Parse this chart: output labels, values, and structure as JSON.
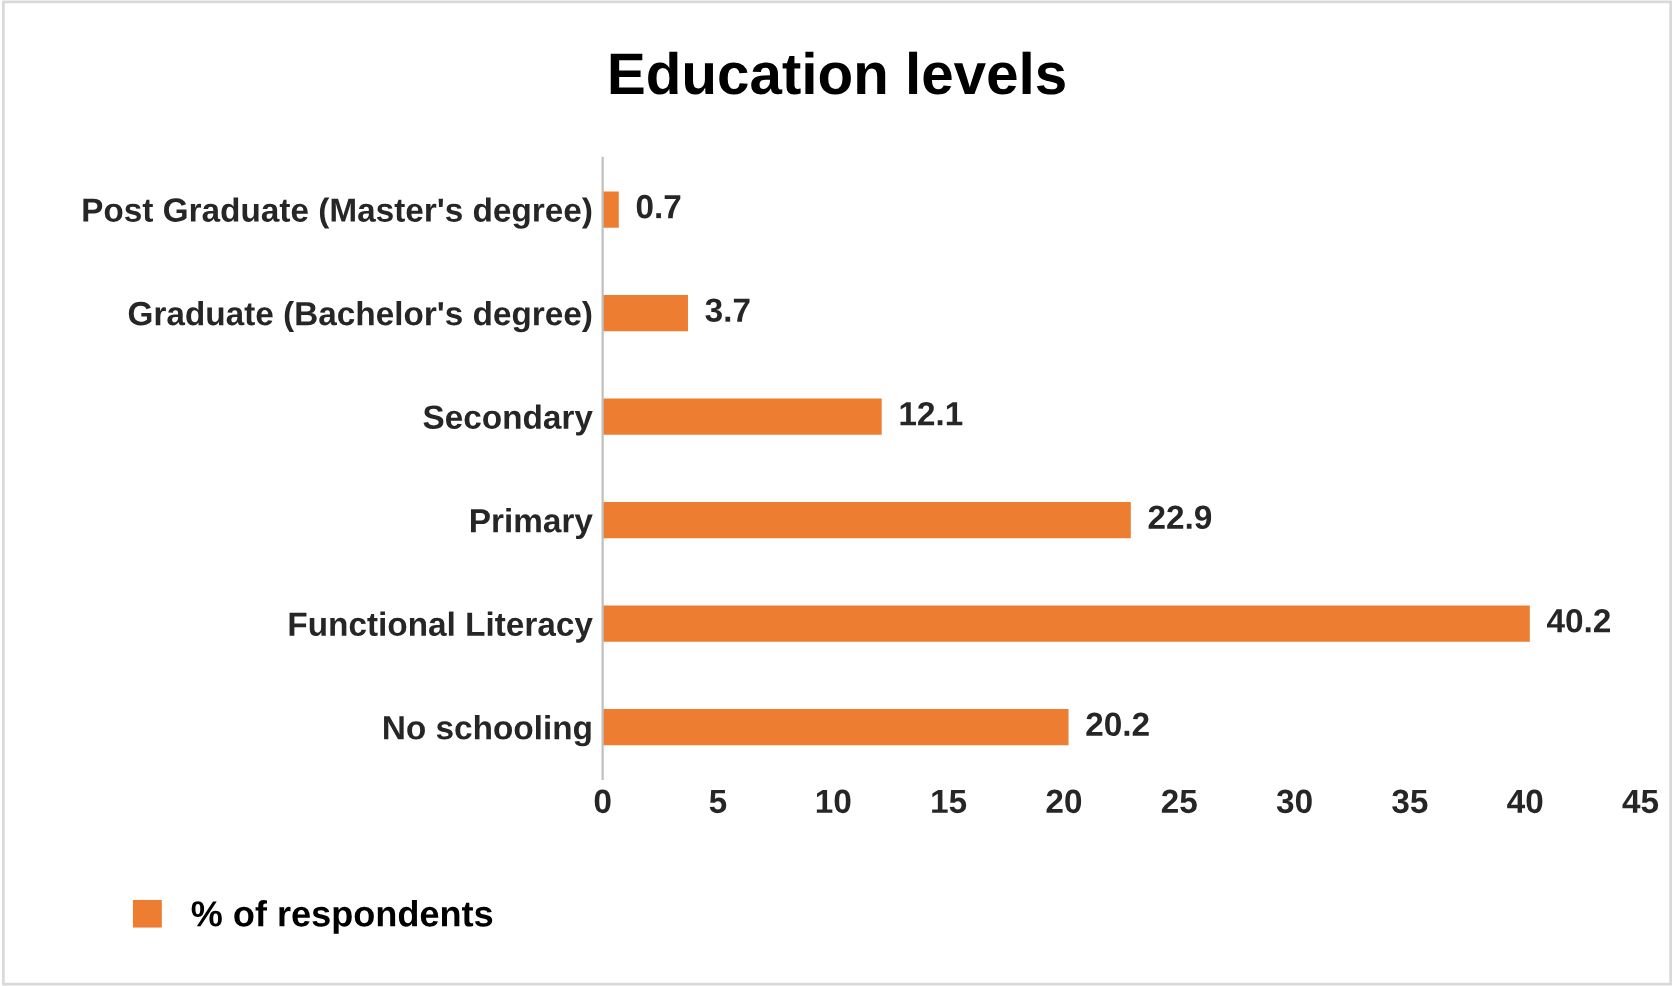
{
  "chart_data": {
    "type": "bar",
    "orientation": "horizontal",
    "title": "Education levels",
    "categories": [
      "Post Graduate (Master's degree)",
      "Graduate (Bachelor's degree)",
      "Secondary",
      "Primary",
      "Functional Literacy",
      "No schooling"
    ],
    "series": [
      {
        "name": "% of respondents",
        "color": "#ed7d31",
        "values": [
          0.7,
          3.7,
          12.1,
          22.9,
          40.2,
          20.2
        ]
      }
    ],
    "xlim": [
      0,
      45
    ],
    "xticks": [
      0,
      5,
      10,
      15,
      20,
      25,
      30,
      35,
      40,
      45
    ],
    "data_labels": true,
    "grid": false,
    "legend": "bottom left"
  }
}
